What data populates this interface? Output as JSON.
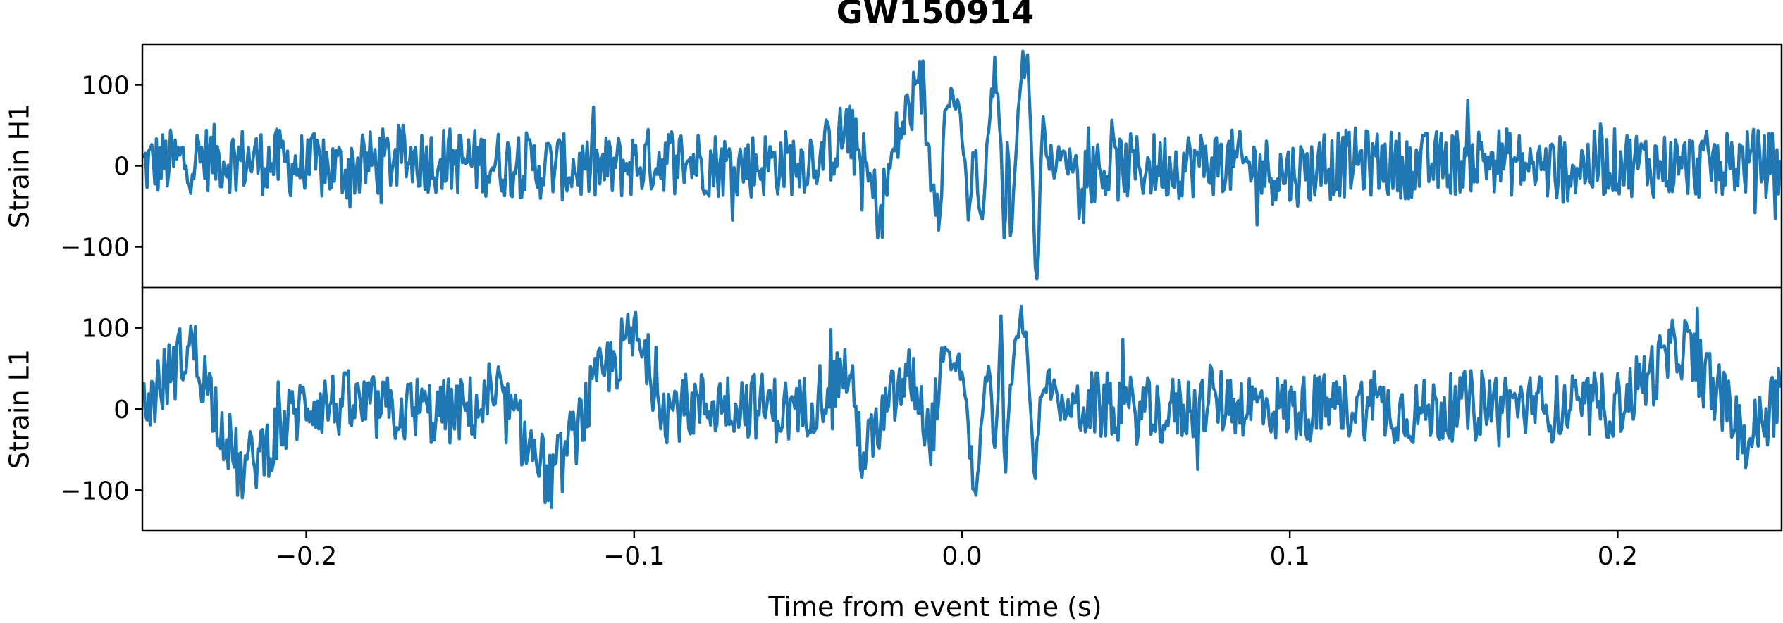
{
  "chart_data": {
    "type": "line",
    "title": "GW150914",
    "xlabel": "Time from event time (s)",
    "xlim": [
      -0.25,
      0.25
    ],
    "x_ticks": [
      -0.2,
      -0.1,
      0.0,
      0.1,
      0.2
    ],
    "x_tick_labels": [
      "−0.2",
      "−0.1",
      "0.0",
      "0.1",
      "0.2"
    ],
    "line_color": "#1f77b4",
    "grid": false,
    "panels": [
      {
        "ylabel": "Strain H1",
        "ylim": [
          -150,
          150
        ],
        "y_ticks": [
          100,
          0,
          -100
        ],
        "y_tick_labels": [
          "100",
          "0",
          "−100"
        ],
        "series": [
          {
            "name": "",
            "x": [
              -0.25,
              -0.23,
              -0.21,
              -0.19,
              -0.17,
              -0.15,
              -0.13,
              -0.11,
              -0.09,
              -0.07,
              -0.05,
              -0.04,
              -0.035,
              -0.03,
              -0.025,
              -0.02,
              -0.015,
              -0.012,
              -0.01,
              -0.007,
              -0.005,
              -0.003,
              0.0,
              0.002,
              0.004,
              0.006,
              0.008,
              0.01,
              0.012,
              0.013,
              0.014,
              0.015,
              0.016,
              0.018,
              0.02,
              0.021,
              0.022,
              0.023,
              0.024,
              0.025,
              0.026,
              0.028,
              0.03,
              0.04,
              0.06,
              0.08,
              0.1,
              0.12,
              0.14,
              0.16,
              0.18,
              0.2,
              0.22,
              0.24,
              0.25
            ],
            "y": [
              0,
              10,
              5,
              -5,
              10,
              5,
              0,
              -5,
              10,
              0,
              5,
              20,
              45,
              0,
              -60,
              30,
              80,
              100,
              10,
              -40,
              60,
              95,
              40,
              -60,
              20,
              -80,
              40,
              120,
              30,
              -110,
              60,
              -120,
              0,
              125,
              130,
              60,
              -100,
              -145,
              0,
              60,
              20,
              0,
              10,
              -5,
              0,
              5,
              -10,
              5,
              0,
              10,
              -5,
              5,
              0,
              5,
              0
            ]
          }
        ]
      },
      {
        "ylabel": "Strain L1",
        "ylim": [
          -150,
          150
        ],
        "y_ticks": [
          100,
          0,
          -100
        ],
        "y_tick_labels": [
          "100",
          "0",
          "−100"
        ],
        "series": [
          {
            "name": "",
            "x": [
              -0.25,
              -0.235,
              -0.22,
              -0.2,
              -0.18,
              -0.16,
              -0.14,
              -0.125,
              -0.11,
              -0.1,
              -0.09,
              -0.07,
              -0.05,
              -0.035,
              -0.03,
              -0.02,
              -0.015,
              -0.01,
              -0.005,
              0.0,
              0.004,
              0.008,
              0.01,
              0.012,
              0.013,
              0.015,
              0.018,
              0.02,
              0.022,
              0.024,
              0.026,
              0.03,
              0.04,
              0.06,
              0.08,
              0.1,
              0.12,
              0.14,
              0.16,
              0.18,
              0.2,
              0.22,
              0.24,
              0.25
            ],
            "y": [
              0,
              80,
              -80,
              10,
              0,
              -5,
              5,
              -90,
              40,
              90,
              0,
              10,
              -5,
              50,
              -60,
              20,
              40,
              -40,
              60,
              50,
              -110,
              60,
              -60,
              120,
              -100,
              40,
              125,
              70,
              -100,
              20,
              40,
              0,
              5,
              -5,
              10,
              0,
              5,
              -5,
              10,
              0,
              5,
              80,
              -40,
              30
            ]
          }
        ]
      }
    ]
  }
}
